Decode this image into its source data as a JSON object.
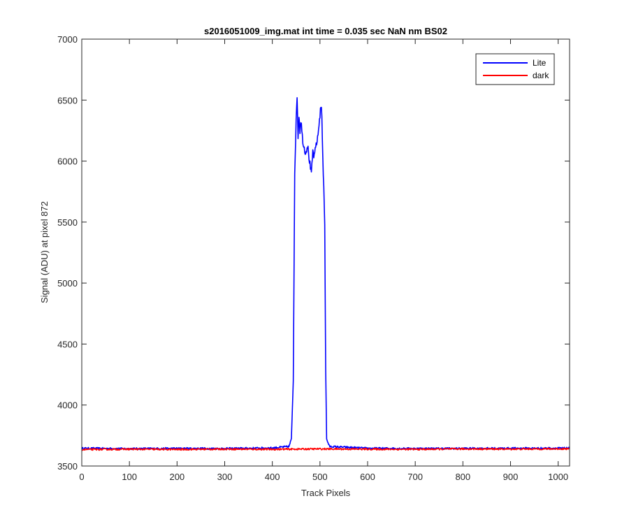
{
  "chart_data": {
    "type": "line",
    "title": "s2016051009_img.mat int time = 0.035 sec  NaN nm BS02",
    "xlabel": "Track Pixels",
    "ylabel": "Signal (ADU) at pixel 872",
    "xlim": [
      0,
      1024
    ],
    "ylim": [
      3500,
      7000
    ],
    "xticks": [
      "0",
      "100",
      "200",
      "300",
      "400",
      "500",
      "600",
      "700",
      "800",
      "900",
      "1000"
    ],
    "yticks": [
      "3500",
      "4000",
      "4500",
      "5000",
      "5500",
      "6000",
      "6500",
      "7000"
    ],
    "grid": false,
    "legend_position": "top-right",
    "series": [
      {
        "name": "Lite",
        "color": "#0000ff",
        "x": [
          0,
          100,
          200,
          300,
          400,
          435,
          440,
          444,
          447,
          450,
          452,
          454,
          456,
          458,
          460,
          463,
          466,
          470,
          474,
          478,
          482,
          485,
          488,
          492,
          495,
          498,
          500,
          502,
          504,
          506,
          508,
          510,
          512,
          514,
          517,
          520,
          600,
          700,
          800,
          900,
          1024
        ],
        "y": [
          3645,
          3642,
          3644,
          3643,
          3648,
          3660,
          3720,
          4200,
          5900,
          6320,
          6545,
          6200,
          6380,
          6250,
          6340,
          6200,
          6120,
          6070,
          6130,
          6000,
          5890,
          6080,
          6030,
          6140,
          6180,
          6300,
          6380,
          6460,
          6370,
          6000,
          5800,
          5480,
          4300,
          3720,
          3690,
          3660,
          3645,
          3643,
          3644,
          3645,
          3646
        ]
      },
      {
        "name": "dark",
        "color": "#ff0000",
        "x": [
          0,
          100,
          200,
          300,
          400,
          500,
          600,
          700,
          800,
          900,
          1024
        ],
        "y": [
          3635,
          3638,
          3636,
          3639,
          3637,
          3640,
          3638,
          3637,
          3640,
          3639,
          3641
        ]
      }
    ]
  }
}
